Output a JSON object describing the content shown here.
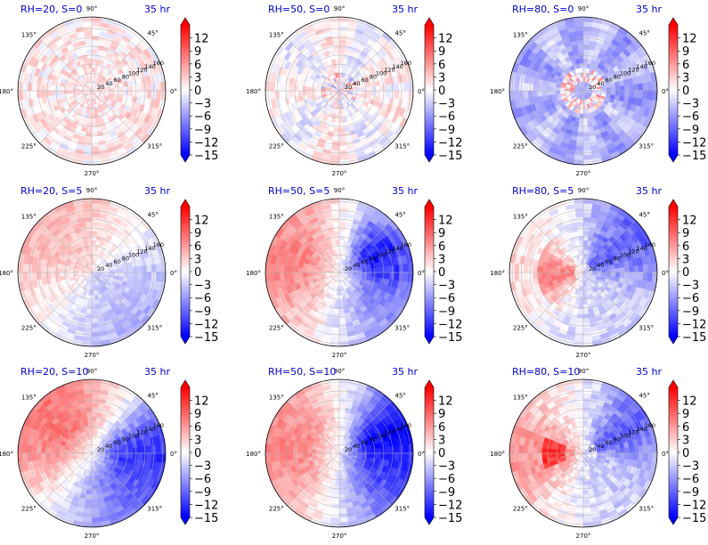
{
  "figure": {
    "colorbar": {
      "ticks": [
        "12",
        "9",
        "6",
        "3",
        "0",
        "−3",
        "−6",
        "−9",
        "−12",
        "−15"
      ],
      "tick_values": [
        12,
        9,
        6,
        3,
        0,
        -3,
        -6,
        -9,
        -12,
        -15
      ],
      "range": [
        -15,
        15
      ],
      "colormap": "bwr",
      "colors": {
        "low": "#0000ff",
        "mid": "#ffffff",
        "high": "#ff0000"
      }
    },
    "angle_labels": [
      "90°",
      "45°",
      "0°",
      "315°",
      "270°",
      "225°",
      "180°",
      "135°"
    ],
    "radial_labels": [
      "20",
      "40",
      "60",
      "80",
      "100",
      "120",
      "140",
      "160"
    ],
    "time_label": "35 hr",
    "title_color": "#0000cc"
  },
  "chart_data": [
    {
      "type": "heatmap",
      "projection": "polar",
      "title": "RH=20, S=0",
      "time": "35 hr",
      "rh": 20,
      "s": 0,
      "pattern": "weak positive/negative noise, slightly positive overall",
      "value_range": [
        -15,
        15
      ],
      "radial_ticks": [
        20,
        40,
        60,
        80,
        100,
        120,
        140,
        160
      ]
    },
    {
      "type": "heatmap",
      "projection": "polar",
      "title": "RH=50, S=0",
      "time": "35 hr",
      "rh": 50,
      "s": 0,
      "pattern": "weak mixed noise with small red and blue cells near center",
      "value_range": [
        -15,
        15
      ],
      "radial_ticks": [
        20,
        40,
        60,
        80,
        100,
        120,
        140,
        160
      ]
    },
    {
      "type": "heatmap",
      "projection": "polar",
      "title": "RH=80, S=0",
      "time": "35 hr",
      "rh": 80,
      "s": 0,
      "pattern": "mostly negative (blue) with a red ring near center",
      "value_range": [
        -15,
        15
      ],
      "radial_ticks": [
        20,
        40,
        60,
        80,
        100,
        120,
        140,
        160
      ]
    },
    {
      "type": "heatmap",
      "projection": "polar",
      "title": "RH=20, S=5",
      "time": "35 hr",
      "rh": 20,
      "s": 5,
      "pattern": "positive (red) upper-left half, negative (blue) lower-right half",
      "value_range": [
        -15,
        15
      ],
      "radial_ticks": [
        20,
        40,
        60,
        80,
        100,
        120,
        140,
        160
      ]
    },
    {
      "type": "heatmap",
      "projection": "polar",
      "title": "RH=50, S=5",
      "time": "35 hr",
      "rh": 50,
      "s": 5,
      "pattern": "strong red on left, strong blue upper-right, blue lower-right",
      "value_range": [
        -15,
        15
      ],
      "radial_ticks": [
        20,
        40,
        60,
        80,
        100,
        120,
        140,
        160
      ]
    },
    {
      "type": "heatmap",
      "projection": "polar",
      "title": "RH=80, S=5",
      "time": "35 hr",
      "rh": 80,
      "s": 5,
      "pattern": "strong blue upper-right, red patches on left, light blue lower",
      "value_range": [
        -15,
        15
      ],
      "radial_ticks": [
        20,
        40,
        60,
        80,
        100,
        120,
        140,
        160
      ]
    },
    {
      "type": "heatmap",
      "projection": "polar",
      "title": "RH=20, S=10",
      "time": "35 hr",
      "rh": 20,
      "s": 10,
      "pattern": "strong red upper-left, strong blue on right",
      "value_range": [
        -15,
        15
      ],
      "radial_ticks": [
        20,
        40,
        60,
        80,
        100,
        120,
        140,
        160
      ]
    },
    {
      "type": "heatmap",
      "projection": "polar",
      "title": "RH=50, S=10",
      "time": "35 hr",
      "rh": 50,
      "s": 10,
      "pattern": "red left, strong blue upper-right, blue lower-right",
      "value_range": [
        -15,
        15
      ],
      "radial_ticks": [
        20,
        40,
        60,
        80,
        100,
        120,
        140,
        160
      ]
    },
    {
      "type": "heatmap",
      "projection": "polar",
      "title": "RH=80, S=10",
      "time": "35 hr",
      "rh": 80,
      "s": 10,
      "pattern": "red left with strong core, blue upper-right, mixed lower",
      "value_range": [
        -15,
        15
      ],
      "radial_ticks": [
        20,
        40,
        60,
        80,
        100,
        120,
        140,
        160
      ]
    }
  ]
}
